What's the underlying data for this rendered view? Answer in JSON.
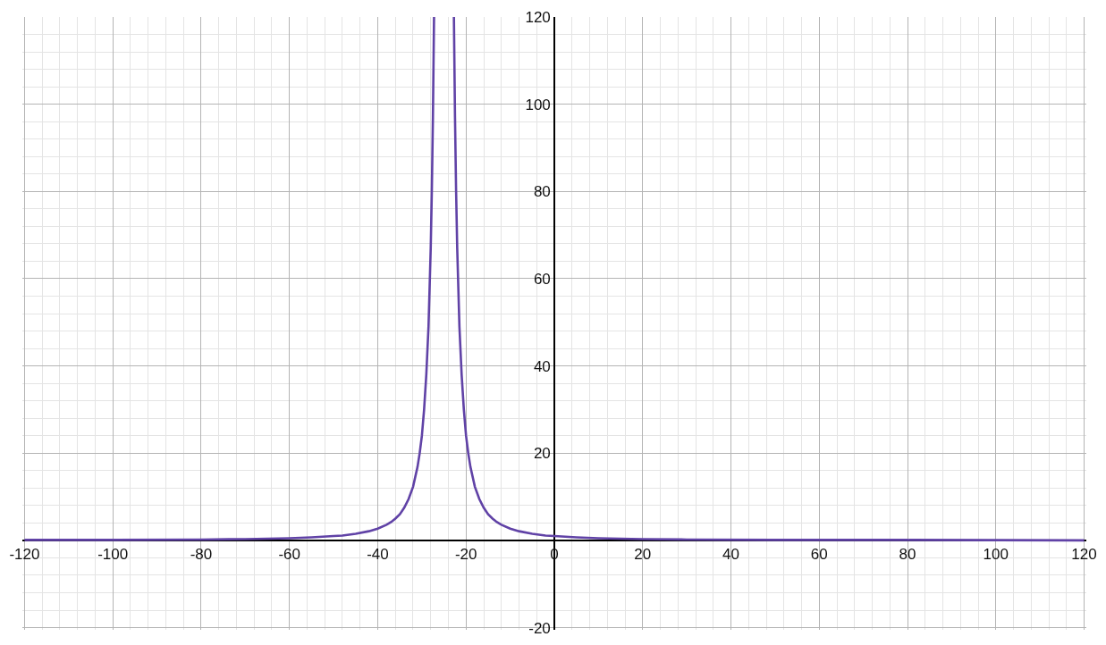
{
  "chart_data": {
    "type": "line",
    "color": "#6042a6",
    "x": [
      -120,
      -100,
      -80,
      -70,
      -60,
      -55,
      -50,
      -48,
      -45,
      -42,
      -40,
      -38,
      -37,
      -36,
      -35,
      -34,
      -33,
      -32,
      -31,
      -30.5,
      -30,
      -29.5,
      -29,
      -28.5,
      -28,
      -27.75,
      -27.5,
      -27.25,
      -25,
      -22.75,
      -22.5,
      -22.25,
      -22,
      -21.5,
      -21,
      -20.5,
      -20,
      -19.5,
      -19,
      -18,
      -17,
      -16,
      -15,
      -14,
      -13,
      -12,
      -10,
      -8,
      -5,
      -2,
      0,
      5,
      10,
      20,
      30,
      50,
      80,
      120
    ],
    "values": [
      0.1,
      0.1,
      0.2,
      0.3,
      0.5,
      0.7,
      1.0,
      1.1,
      1.5,
      2.1,
      2.7,
      3.6,
      4.2,
      5.0,
      6.0,
      7.5,
      9.5,
      12.3,
      16.8,
      20,
      24,
      30,
      38,
      49,
      67,
      80,
      97,
      120,
      null,
      120,
      97,
      80,
      67,
      49,
      38,
      30,
      24,
      20,
      16.8,
      12.3,
      9.5,
      7.5,
      6.0,
      5.0,
      4.2,
      3.6,
      2.7,
      2.1,
      1.5,
      1.1,
      1.0,
      0.7,
      0.5,
      0.3,
      0.2,
      0.1,
      0.1,
      0.0
    ],
    "xlim": [
      -120.5,
      120.5
    ],
    "ylim": [
      -20.5,
      120
    ],
    "xticks": [
      -120,
      -100,
      -80,
      -60,
      -40,
      -20,
      0,
      20,
      40,
      60,
      80,
      100,
      120
    ],
    "yticks": [
      -20,
      20,
      40,
      60,
      80,
      100,
      120
    ],
    "grid": true
  }
}
